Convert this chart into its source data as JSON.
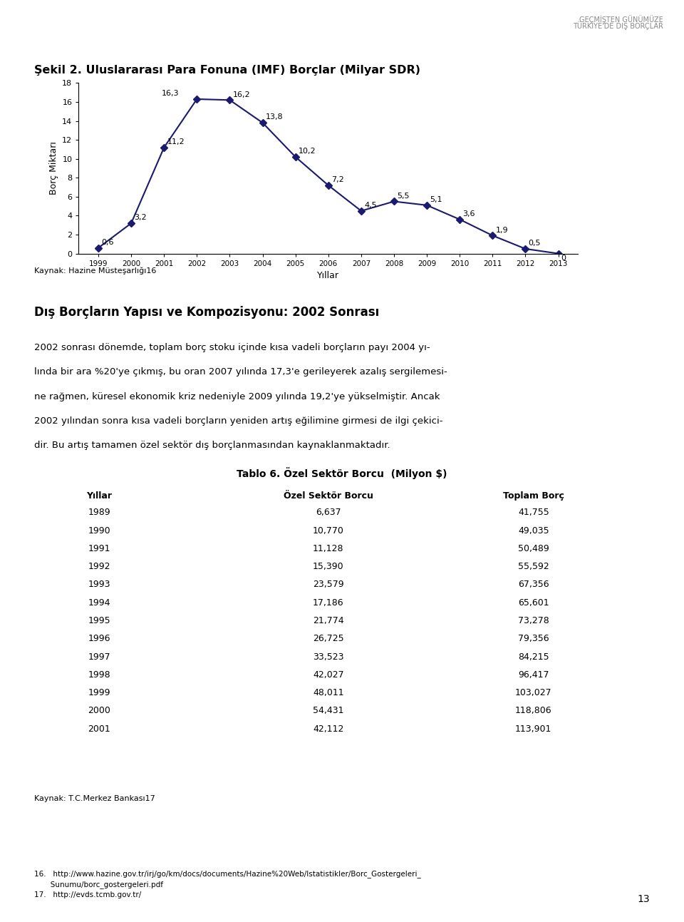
{
  "header_line1": "GEÇMİŞTEN GÜNÜMÜZE",
  "header_line2": "TÜRKİYE'DE DIŞ BORÇLAR",
  "chart_title": "Şekil 2. Uluslararası Para Fonuna (IMF) Borçlar (Milyar SDR)",
  "years": [
    1999,
    2000,
    2001,
    2002,
    2003,
    2004,
    2005,
    2006,
    2007,
    2008,
    2009,
    2010,
    2011,
    2012,
    2013
  ],
  "values": [
    0.6,
    3.2,
    11.2,
    16.3,
    16.2,
    13.8,
    10.2,
    7.2,
    4.5,
    5.5,
    5.1,
    3.6,
    1.9,
    0.5,
    0.0
  ],
  "labels": [
    "0,6",
    "3,2",
    "11,2",
    "16,3",
    "16,2",
    "13,8",
    "10,2",
    "7,2",
    "4,5",
    "5,5",
    "5,1",
    "3,6",
    "1,9",
    "0,5",
    "0"
  ],
  "ylabel": "Borç Miktarı",
  "xlabel": "Yıllar",
  "ylim": [
    0,
    18
  ],
  "yticks": [
    0,
    2,
    4,
    6,
    8,
    10,
    12,
    14,
    16,
    18
  ],
  "line_color": "#1a1a6e",
  "marker_color": "#1a1a6e",
  "source_chart": "Kaynak: Hazine Müsteşarlığı",
  "source_chart_superscript": "16",
  "section_title": "Dış Borçların Yapısı ve Kompozisyonu: 2002 Sonrası",
  "paragraph1": "2002 sonrası dönemde, toplam borç stoku içinde kısa vadeli borçların payı 2004 yı-",
  "paragraph2": "lında bir ara %20'ye çıkmış, bu oran 2007 yılında 17,3'e gerileyerek azalış sergilemesi-",
  "paragraph3": "ne rağmen, küresel ekonomik kriz nedeniyle 2009 yılında 19,2'ye yükselmiştir. Ancak",
  "paragraph4": "2002 yılından sonra kısa vadeli borçların yeniden artış eğilimine girmesi de ilgi çekici-",
  "paragraph5": "dir. Bu artış tamamen özel sektör dış borçlanmasından kaynaklanmaktadır.",
  "table_title": "Tablo 6. Özel Sektör Borcu  (Milyon $)",
  "table_headers": [
    "Yıllar",
    "Özel Sektör Borcu",
    "Toplam Borç"
  ],
  "table_data": [
    [
      "1989",
      "6,637",
      "41,755"
    ],
    [
      "1990",
      "10,770",
      "49,035"
    ],
    [
      "1991",
      "11,128",
      "50,489"
    ],
    [
      "1992",
      "15,390",
      "55,592"
    ],
    [
      "1993",
      "23,579",
      "67,356"
    ],
    [
      "1994",
      "17,186",
      "65,601"
    ],
    [
      "1995",
      "21,774",
      "73,278"
    ],
    [
      "1996",
      "26,725",
      "79,356"
    ],
    [
      "1997",
      "33,523",
      "84,215"
    ],
    [
      "1998",
      "42,027",
      "96,417"
    ],
    [
      "1999",
      "48,011",
      "103,027"
    ],
    [
      "2000",
      "54,431",
      "118,806"
    ],
    [
      "2001",
      "42,112",
      "113,901"
    ]
  ],
  "source_table": "Kaynak: T.C.Merkez Bankası",
  "source_table_superscript": "17",
  "footnote16": "16.   http://www.hazine.gov.tr/irj/go/km/docs/documents/Hazine%20Web/Istatistikler/Borc_Gostergeleri_\n       Sunumu/borc_gostergeleri.pdf",
  "footnote17": "17.   http://evds.tcmb.gov.tr/",
  "page_number": "13",
  "background_color": "#FFFFFF",
  "text_color": "#000000",
  "header_color": "#888888",
  "accent_color": "#B8860B"
}
